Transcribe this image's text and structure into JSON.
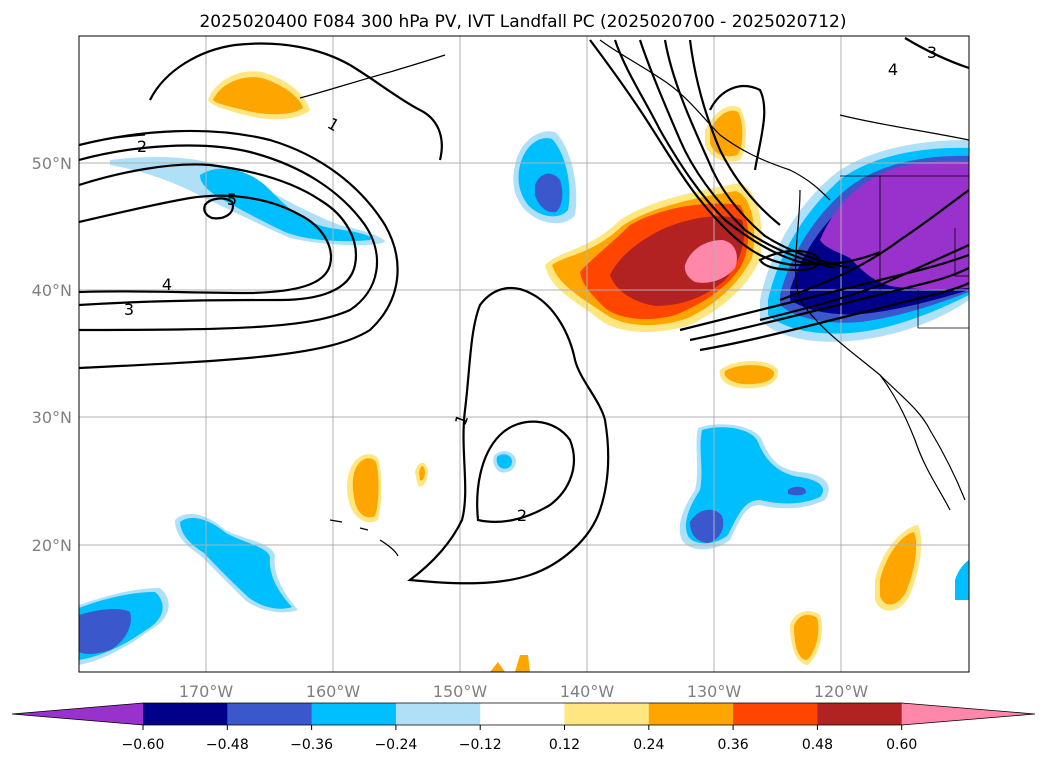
{
  "title": "2025020400 F084 300 hPa PV, IVT Landfall PC (2025020700 - 2025020712)",
  "lat_labels": [
    "50°N",
    "40°N",
    "30°N",
    "20°N"
  ],
  "lon_labels": [
    "170°W",
    "160°W",
    "150°W",
    "140°W",
    "130°W",
    "120°W"
  ],
  "contour_labels": [
    "2",
    "1",
    "5",
    "4",
    "3",
    "1",
    "2",
    "4",
    "3"
  ],
  "colorbar": {
    "ticks": [
      "−0.60",
      "−0.48",
      "−0.36",
      "−0.24",
      "−0.12",
      "0.12",
      "0.24",
      "0.36",
      "0.48",
      "0.60"
    ],
    "colors": [
      "#9932cc",
      "#00008b",
      "#3a57cc",
      "#00bfff",
      "#b0e0f8",
      "#ffffff",
      "#ffe680",
      "#ffa500",
      "#ff4500",
      "#b22222",
      "#ff88aa"
    ]
  },
  "colors": {
    "purple": "#9932cc",
    "navy": "#00008b",
    "royal": "#3a57cc",
    "sky": "#00bfff",
    "pale_blue": "#b0e0f8",
    "pale_yellow": "#ffe680",
    "orange": "#ffa500",
    "red_orange": "#ff4500",
    "firebrick": "#b22222",
    "pink": "#ff88aa",
    "grid": "#b0b0b0"
  }
}
